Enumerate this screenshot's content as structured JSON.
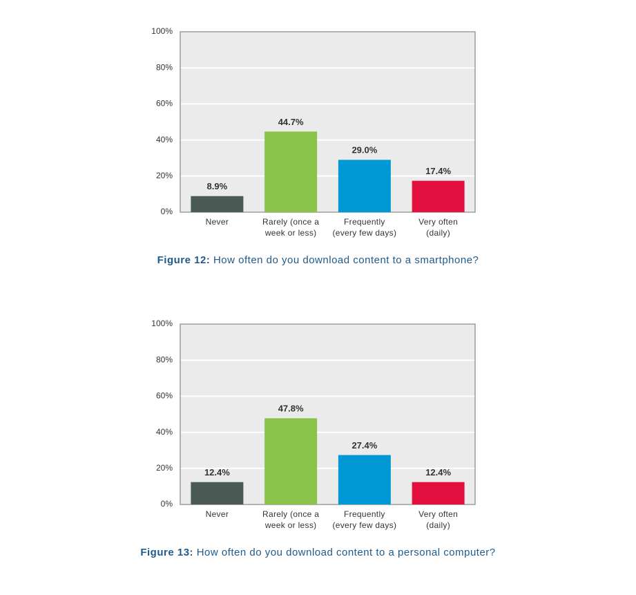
{
  "chart_data": [
    {
      "type": "bar",
      "categories": [
        "Never",
        "Rarely (once a\nweek or less)",
        "Frequently\n(every few days)",
        "Very often\n(daily)"
      ],
      "values": [
        8.9,
        44.7,
        29.0,
        17.4
      ],
      "value_labels": [
        "8.9%",
        "44.7%",
        "29.0%",
        "17.4%"
      ],
      "colors": [
        "#4b5a55",
        "#8bc34a",
        "#0099d6",
        "#e3103f"
      ],
      "ylim": [
        0,
        100
      ],
      "yticks": [
        {
          "value": 0,
          "label": "0%"
        },
        {
          "value": 20,
          "label": "20%"
        },
        {
          "value": 40,
          "label": "40%"
        },
        {
          "value": 60,
          "label": "60%"
        },
        {
          "value": 80,
          "label": "80%"
        },
        {
          "value": 100,
          "label": "100%"
        }
      ],
      "grid": true,
      "caption_label": "Figure 12:",
      "caption": "How often do you download content to a smartphone?"
    },
    {
      "type": "bar",
      "categories": [
        "Never",
        "Rarely (once a\nweek or less)",
        "Frequently\n(every few days)",
        "Very often\n(daily)"
      ],
      "values": [
        12.4,
        47.8,
        27.4,
        12.4
      ],
      "value_labels": [
        "12.4%",
        "47.8%",
        "27.4%",
        "12.4%"
      ],
      "colors": [
        "#4b5a55",
        "#8bc34a",
        "#0099d6",
        "#e3103f"
      ],
      "ylim": [
        0,
        100
      ],
      "yticks": [
        {
          "value": 0,
          "label": "0%"
        },
        {
          "value": 20,
          "label": "20%"
        },
        {
          "value": 40,
          "label": "40%"
        },
        {
          "value": 60,
          "label": "60%"
        },
        {
          "value": 80,
          "label": "80%"
        },
        {
          "value": 100,
          "label": "100%"
        }
      ],
      "grid": true,
      "caption_label": "Figure 13:",
      "caption": "How often do you download content to a personal computer?"
    }
  ]
}
